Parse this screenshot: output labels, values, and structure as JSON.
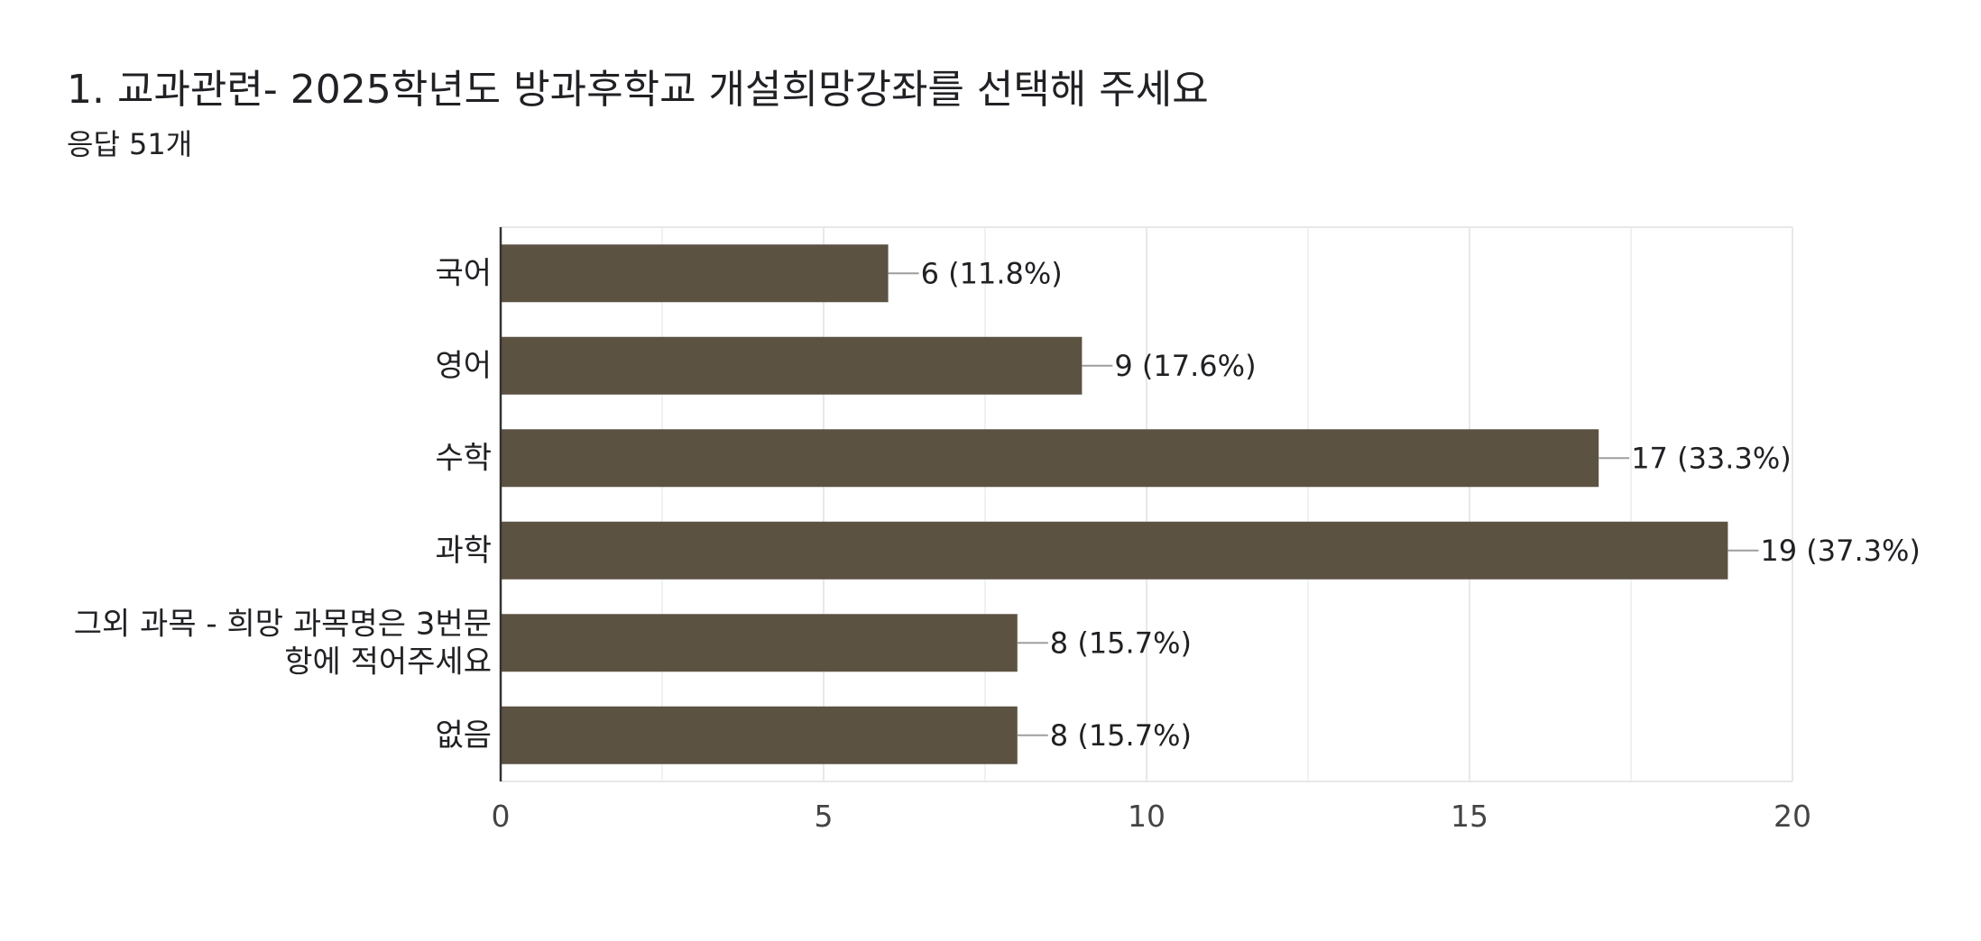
{
  "question": {
    "title": "1. 교과관련- 2025학년도 방과후학교 개설희망강좌를 선택해 주세요",
    "response_count": "응답 51개"
  },
  "colors": {
    "bar": "#5c5242",
    "grid": "#e8e8e8",
    "axis": "#333333",
    "text": "#202124",
    "tick_text": "#444444"
  },
  "chart_data": {
    "type": "bar",
    "orientation": "horizontal",
    "categories": [
      "국어",
      "영어",
      "수학",
      "과학",
      "그외 과목 - 희망 과목명은 3번문항에 적어주세요",
      "없음"
    ],
    "category_label_lines": [
      [
        "국어"
      ],
      [
        "영어"
      ],
      [
        "수학"
      ],
      [
        "과학"
      ],
      [
        "그외 과목 - 희망 과목명은 3번문",
        "항에 적어주세요"
      ],
      [
        "없음"
      ]
    ],
    "values": [
      6,
      9,
      17,
      19,
      8,
      8
    ],
    "data_labels": [
      "6 (11.8%)",
      "9 (17.6%)",
      "17 (33.3%)",
      "19 (37.3%)",
      "8 (15.7%)",
      "8 (15.7%)"
    ],
    "xlim": [
      0,
      20
    ],
    "x_ticks": [
      0,
      5,
      10,
      15,
      20
    ],
    "x_tick_labels": [
      "0",
      "5",
      "10",
      "15",
      "20"
    ],
    "minor_gridlines": [
      2.5,
      7.5,
      12.5,
      17.5
    ],
    "grid": true,
    "legend": "none",
    "xlabel": "",
    "ylabel": ""
  }
}
